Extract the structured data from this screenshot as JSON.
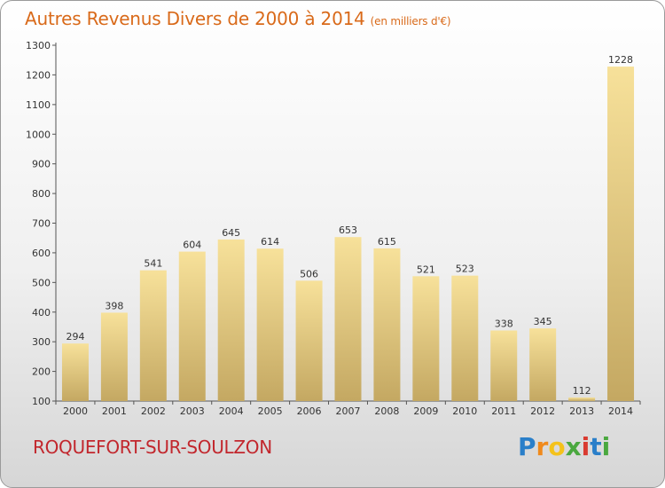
{
  "title": "Autres Revenus Divers de 2000 à 2014",
  "unit": "(en milliers d'€)",
  "commune": "ROQUEFORT-SUR-SOULZON",
  "logo": {
    "letters": [
      "P",
      "r",
      "o",
      "x",
      "i",
      "t",
      "i"
    ],
    "colors": [
      "#2a7fc9",
      "#f08a1c",
      "#f4c21b",
      "#4aa83f",
      "#d93a30",
      "#2a7fc9",
      "#4aa83f"
    ]
  },
  "colors": {
    "title": "#d96a1a",
    "commune": "#c2272d",
    "bar_light": "#f7e19a",
    "bar_dark": "#c4a862"
  },
  "chart_data": {
    "type": "bar",
    "categories": [
      "2000",
      "2001",
      "2002",
      "2003",
      "2004",
      "2005",
      "2006",
      "2007",
      "2008",
      "2009",
      "2010",
      "2011",
      "2012",
      "2013",
      "2014"
    ],
    "values": [
      294,
      398,
      541,
      604,
      645,
      614,
      506,
      653,
      615,
      521,
      523,
      338,
      345,
      112,
      1228
    ],
    "ylim": [
      100,
      1300
    ],
    "yticks": [
      100,
      200,
      300,
      400,
      500,
      600,
      700,
      800,
      900,
      1000,
      1100,
      1200,
      1300
    ],
    "grid": false,
    "data_labels": true
  }
}
